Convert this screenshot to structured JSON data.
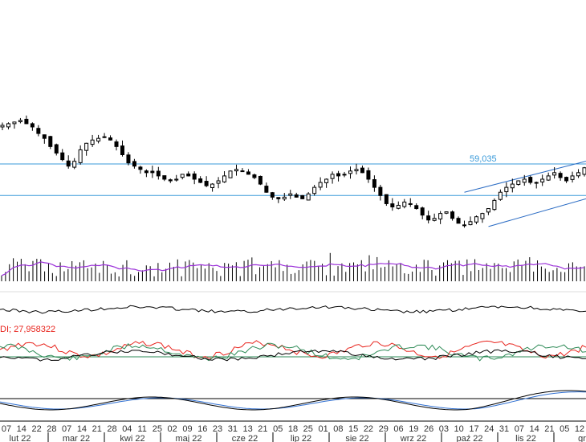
{
  "colors": {
    "background": "#ffffff",
    "candle": "#000000",
    "level_line": "#3a9ad9",
    "level_label": "#3a9ad9",
    "channel": "#2b6cc4",
    "volume_bar": "#000000",
    "volume_ma": "#9b30d9",
    "indicator_line": "#000000",
    "plus_di": "#2e8b57",
    "minus_di": "#e8241d",
    "adx": "#000000",
    "osc_main": "#000000",
    "osc_signal": "#2f6fd1",
    "grid_divider": "#000000"
  },
  "chart_data": {
    "type": "candlestick",
    "x_ticks": [
      "07",
      "14",
      "22",
      "28",
      "07",
      "14",
      "21",
      "28",
      "04",
      "11",
      "25",
      "02",
      "09",
      "16",
      "23",
      "31",
      "13",
      "21",
      "05",
      "18",
      "25",
      "01",
      "08",
      "15",
      "22",
      "29",
      "06",
      "19",
      "26",
      "03",
      "10",
      "17",
      "24",
      "31",
      "07",
      "14",
      "21",
      "05",
      "12"
    ],
    "month_labels": [
      "lut 22",
      "mar 22",
      "kwi 22",
      "maj 22",
      "cze 22",
      "lip 22",
      "sie 22",
      "wrz 22",
      "paź 22",
      "lis 22",
      "gr"
    ],
    "levels": [
      {
        "value": 59.035,
        "label": "59,035"
      },
      {
        "value": 57.1,
        "label": ""
      }
    ],
    "y_range": [
      54.8,
      64.4
    ],
    "close": [
      61.4,
      61.5,
      61.6,
      61.7,
      61.5,
      61.3,
      60.9,
      60.6,
      60.1,
      59.7,
      59.3,
      58.9,
      59.2,
      59.9,
      60.3,
      60.5,
      60.6,
      60.7,
      60.5,
      60.1,
      59.6,
      59.1,
      58.9,
      58.7,
      58.5,
      58.5,
      58.3,
      58.1,
      58.0,
      58.1,
      58.4,
      58.3,
      58.1,
      57.9,
      57.7,
      57.8,
      58.0,
      58.3,
      58.6,
      58.7,
      58.6,
      58.4,
      58.2,
      57.8,
      57.3,
      57.0,
      56.9,
      57.0,
      57.2,
      57.0,
      56.9,
      57.2,
      57.6,
      57.9,
      58.1,
      58.4,
      58.3,
      58.4,
      58.6,
      58.7,
      58.5,
      58.1,
      57.6,
      57.1,
      56.6,
      56.4,
      56.5,
      56.7,
      56.6,
      56.3,
      55.9,
      55.6,
      55.7,
      56.0,
      56.1,
      55.7,
      55.4,
      55.3,
      55.5,
      55.8,
      56.0,
      56.3,
      56.8,
      57.3,
      57.6,
      57.8,
      58.0,
      58.1,
      57.9,
      57.9,
      58.1,
      58.3,
      58.5,
      58.2,
      58.0,
      58.3,
      58.5,
      58.8
    ],
    "volume_ma_range": [
      0.0,
      1.0
    ],
    "indicator_label": "DI; 27,958322"
  }
}
